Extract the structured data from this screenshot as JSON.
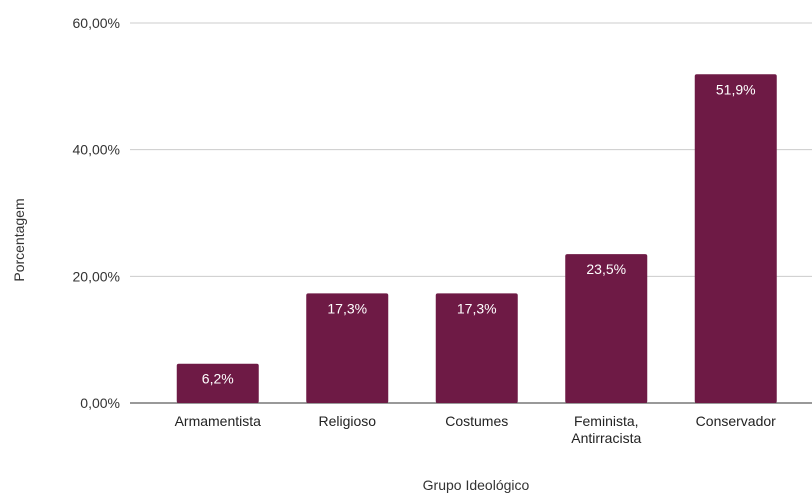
{
  "chart_data": {
    "type": "bar",
    "categories": [
      "Armamentista",
      "Religioso",
      "Costumes",
      "Feminista, Antirracista",
      "Conservador"
    ],
    "category_lines": [
      [
        "Armamentista"
      ],
      [
        "Religioso"
      ],
      [
        "Costumes"
      ],
      [
        "Feminista,",
        "Antirracista"
      ],
      [
        "Conservador"
      ]
    ],
    "values": [
      6.2,
      17.3,
      17.3,
      23.5,
      51.9
    ],
    "data_labels": [
      "6,2%",
      "17,3%",
      "17,3%",
      "23,5%",
      "51,9%"
    ],
    "xlabel": "Grupo Ideológico",
    "ylabel": "Porcentagem",
    "ylim": [
      0,
      60
    ],
    "yticks": [
      0,
      20,
      40,
      60
    ],
    "ytick_labels": [
      "0,00%",
      "20,00%",
      "40,00%",
      "60,00%"
    ],
    "grid": true,
    "bar_color": "#6e1a45",
    "grid_color": "#cccccc"
  }
}
